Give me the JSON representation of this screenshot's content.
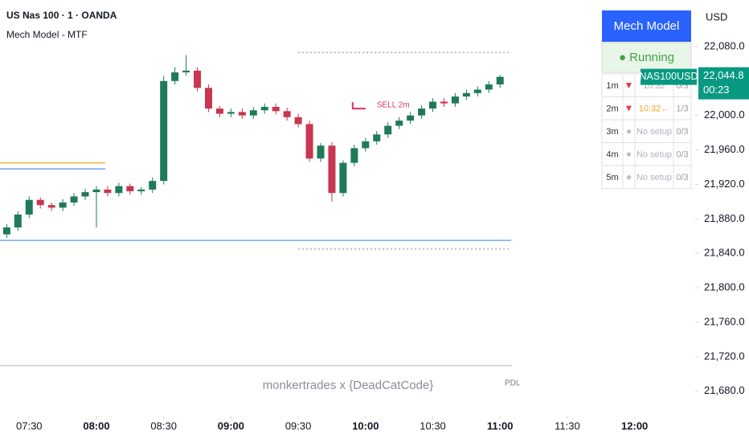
{
  "chart_data": {
    "type": "candlestick",
    "title": "US Nas 100 · 1 · OANDA",
    "subtitle": "Mech Model - MTF",
    "watermark": "monkertrades x {DeadCatCode}",
    "currency": "USD",
    "tag": "PDL",
    "symbol": "NAS100USD",
    "last_price": {
      "value": 22044.8,
      "label": "22,044.8"
    },
    "timer": "00:23",
    "colors": {
      "up": "#1f7a58",
      "down": "#c8364f",
      "price_tag": "#089981"
    },
    "x": [
      440,
      445,
      450,
      455,
      460,
      465,
      470,
      475,
      480,
      485,
      490,
      495,
      500,
      505,
      510,
      515,
      520,
      525,
      530,
      535,
      540,
      545,
      550,
      555,
      560,
      565,
      570,
      575,
      580,
      585,
      590,
      595,
      600,
      605,
      610,
      615,
      620,
      625,
      630,
      635,
      640,
      645,
      650,
      655,
      660
    ],
    "open": [
      21862,
      21870,
      21885,
      21902,
      21896,
      21893,
      21899,
      21906,
      21911,
      21914,
      21910,
      21918,
      21912,
      21914,
      21924,
      22040,
      22050,
      22052,
      22032,
      22008,
      22002,
      22004,
      22000,
      22006,
      22010,
      22005,
      21998,
      21990,
      21950,
      21965,
      21910,
      21945,
      21962,
      21970,
      21978,
      21988,
      21994,
      22000,
      22008,
      22016,
      22014,
      22022,
      22026,
      22030,
      22036
    ],
    "high": [
      21874,
      21889,
      21906,
      21905,
      21899,
      21903,
      21910,
      21915,
      21918,
      21918,
      21922,
      21921,
      21917,
      21928,
      22046,
      22056,
      22070,
      22056,
      22036,
      22011,
      22008,
      22008,
      22010,
      22014,
      22014,
      22009,
      22002,
      21994,
      21968,
      21969,
      21948,
      21966,
      21974,
      21982,
      21992,
      21998,
      22004,
      22012,
      22020,
      22020,
      22026,
      22030,
      22034,
      22040,
      22047
    ],
    "low": [
      21858,
      21866,
      21881,
      21892,
      21889,
      21889,
      21895,
      21902,
      21870,
      21906,
      21906,
      21908,
      21908,
      21910,
      21920,
      22036,
      22046,
      22028,
      22004,
      21998,
      21998,
      21996,
      21996,
      22002,
      22001,
      21994,
      21986,
      21946,
      21946,
      21900,
      21906,
      21941,
      21958,
      21966,
      21974,
      21984,
      21990,
      21996,
      22004,
      22010,
      22010,
      22018,
      22022,
      22026,
      22032
    ],
    "close": [
      21870,
      21885,
      21902,
      21896,
      21893,
      21899,
      21906,
      21911,
      21914,
      21910,
      21918,
      21912,
      21914,
      21924,
      22040,
      22050,
      22052,
      22032,
      22008,
      22002,
      22004,
      22000,
      22006,
      22010,
      22005,
      21998,
      21990,
      21950,
      21965,
      21910,
      21945,
      21962,
      21970,
      21978,
      21988,
      21994,
      22000,
      22008,
      22016,
      22014,
      22022,
      22026,
      22030,
      22036,
      22044.8
    ],
    "levels": [
      {
        "value": 21945,
        "color": "#f5a623",
        "style": "solid",
        "from": 437,
        "to": 484
      },
      {
        "value": 21938,
        "color": "#5b8def",
        "style": "solid",
        "from": 437,
        "to": 484
      },
      {
        "value": 21855,
        "color": "#5b9be8",
        "style": "solid",
        "from": 437,
        "to": 665
      },
      {
        "value": 22073,
        "color": "#9e9e9e",
        "style": "dotted",
        "from": 570,
        "to": 665
      },
      {
        "value": 21845,
        "color": "#9e9e9e",
        "style": "dotted",
        "from": 570,
        "to": 665
      }
    ],
    "signal": {
      "label": "SELL 2m",
      "x": 600,
      "value": 22008,
      "color": "#d9325a"
    },
    "xlim": [
      437,
      747
    ],
    "ylim": [
      21663,
      22134
    ],
    "xticks": [
      {
        "value": 450,
        "label": "07:30"
      },
      {
        "value": 480,
        "label": "08:00"
      },
      {
        "value": 510,
        "label": "08:30"
      },
      {
        "value": 540,
        "label": "09:00"
      },
      {
        "value": 570,
        "label": "09:30"
      },
      {
        "value": 600,
        "label": "10:00"
      },
      {
        "value": 630,
        "label": "10:30"
      },
      {
        "value": 660,
        "label": "11:00"
      },
      {
        "value": 690,
        "label": "11:30"
      },
      {
        "value": 720,
        "label": "12:00"
      }
    ],
    "bold_xticks": [
      1,
      3,
      5,
      7,
      9
    ],
    "yticks": [
      {
        "value": 22080,
        "label": "22,080.0"
      },
      {
        "value": 22040,
        "label": "22,040.0"
      },
      {
        "value": 22000,
        "label": "22,000.0"
      },
      {
        "value": 21960,
        "label": "21,960.0"
      },
      {
        "value": 21920,
        "label": "21,920.0"
      },
      {
        "value": 21880,
        "label": "21,880.0"
      },
      {
        "value": 21840,
        "label": "21,840.0"
      },
      {
        "value": 21800,
        "label": "21,800.0"
      },
      {
        "value": 21760,
        "label": "21,760.0"
      },
      {
        "value": 21720,
        "label": "21,720.0"
      },
      {
        "value": 21680,
        "label": "21,680.0"
      }
    ],
    "panel": {
      "title": "Mech Model",
      "status": "● Running",
      "rows": [
        [
          "1m",
          "▼",
          "10:32",
          "0/3"
        ],
        [
          "2m",
          "▼",
          "10:32←",
          "1/3"
        ],
        [
          "3m",
          "●",
          "No setup",
          "0/3"
        ],
        [
          "4m",
          "●",
          "No setup",
          "0/3"
        ],
        [
          "5m",
          "●",
          "No setup",
          "0/3"
        ]
      ]
    }
  }
}
